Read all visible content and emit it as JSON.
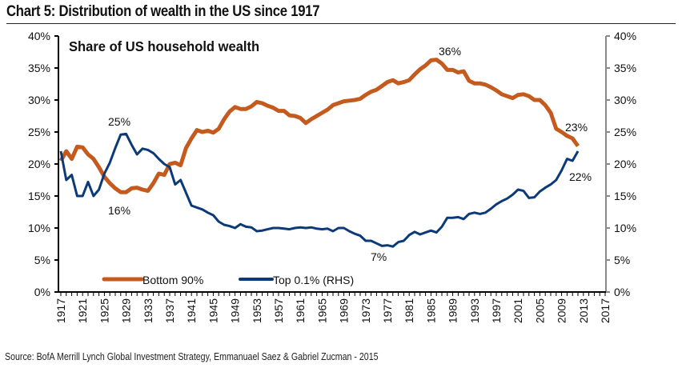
{
  "title": "Chart 5: Distribution of wealth in the US since 1917",
  "source": "Source: BofA Merrill Lynch Global Investment Strategy, Emmanuael Saez & Gabriel Zucman - 2015",
  "chart_data": {
    "type": "line",
    "subtitle": "Share of US household wealth",
    "x_range": [
      1917,
      2017
    ],
    "x_tick_labels": [
      "1917",
      "1921",
      "1925",
      "1929",
      "1933",
      "1937",
      "1941",
      "1945",
      "1949",
      "1953",
      "1957",
      "1961",
      "1965",
      "1969",
      "1973",
      "1977",
      "1981",
      "1985",
      "1989",
      "1993",
      "1997",
      "2001",
      "2005",
      "2009",
      "2013",
      "2017"
    ],
    "y_left": {
      "range": [
        0,
        40
      ],
      "tick_labels": [
        "0%",
        "5%",
        "10%",
        "15%",
        "20%",
        "25%",
        "30%",
        "35%",
        "40%"
      ]
    },
    "y_right": {
      "range": [
        0,
        40
      ],
      "tick_labels": [
        "0%",
        "5%",
        "10%",
        "15%",
        "20%",
        "25%",
        "30%",
        "35%",
        "40%"
      ]
    },
    "grid": false,
    "legend": "bottom-left",
    "x_start": 1917,
    "series": [
      {
        "name": "Bottom 90%",
        "color": "#c55a1e",
        "axis": "left",
        "values": [
          20.5,
          22,
          20.8,
          22.7,
          22.6,
          21.5,
          20.8,
          19.5,
          18,
          17,
          16.2,
          15.6,
          15.6,
          16.2,
          16.3,
          16,
          15.8,
          17,
          18.5,
          18.3,
          20,
          20.2,
          19.8,
          22.5,
          24,
          25.3,
          25,
          25.2,
          24.9,
          25.5,
          27,
          28.2,
          28.9,
          28.6,
          28.6,
          29,
          29.7,
          29.5,
          29.1,
          28.8,
          28.3,
          28.3,
          27.6,
          27.5,
          27.2,
          26.4,
          27,
          27.5,
          28,
          28.5,
          29.2,
          29.5,
          29.8,
          29.9,
          30,
          30.2,
          30.8,
          31.3,
          31.6,
          32.2,
          32.8,
          33.1,
          32.6,
          32.8,
          33.1,
          34,
          34.8,
          35.4,
          36.2,
          36.3,
          35.7,
          34.7,
          34.7,
          34.3,
          34.5,
          33,
          32.6,
          32.6,
          32.4,
          32,
          31.5,
          30.9,
          30.6,
          30.3,
          30.8,
          30.9,
          30.6,
          30,
          30,
          29.2,
          28,
          25.5,
          25,
          24.4,
          24,
          22.8
        ]
      },
      {
        "name": "Top 0.1% (RHS)",
        "color": "#0c3a78",
        "axis": "right",
        "values": [
          22,
          17.5,
          18.3,
          15,
          15,
          17.2,
          15,
          16,
          18.5,
          20.2,
          22.5,
          24.6,
          24.7,
          23,
          21.5,
          22.4,
          22.2,
          21.7,
          20.8,
          20,
          19.5,
          16.8,
          17.5,
          15.5,
          13.5,
          13.2,
          12.9,
          12.4,
          12,
          11,
          10.5,
          10.3,
          10,
          10.6,
          10.2,
          10.1,
          9.5,
          9.6,
          9.8,
          10,
          10,
          9.9,
          9.8,
          10,
          10.1,
          10,
          10.1,
          9.9,
          9.8,
          9.9,
          9.5,
          10,
          10,
          9.5,
          9.1,
          8.8,
          8,
          8,
          7.6,
          7.2,
          7.3,
          7.1,
          7.8,
          8,
          8.9,
          9.4,
          9,
          9.3,
          9.6,
          9.3,
          10.2,
          11.6,
          11.6,
          11.7,
          11.4,
          12.2,
          12.4,
          12.2,
          12.4,
          13,
          13.7,
          14.2,
          14.6,
          15.2,
          16,
          15.8,
          14.7,
          14.8,
          15.7,
          16.3,
          16.8,
          17.5,
          19,
          20.8,
          20.5,
          22
        ]
      }
    ],
    "annotations": [
      "25%",
      "16%",
      "36%",
      "7%",
      "23%",
      "22%"
    ]
  }
}
